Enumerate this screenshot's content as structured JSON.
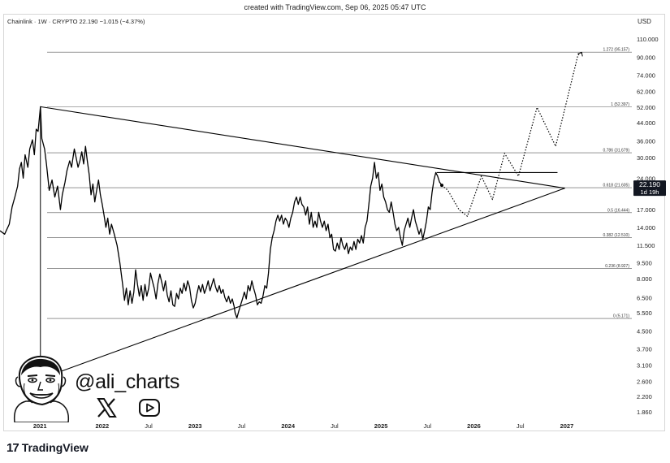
{
  "header": {
    "created_text": "created with TradingView.com, Sep 06, 2025 05:47 UTC"
  },
  "symbol": {
    "title": "Chainlink · 1W · CRYPTO",
    "price": "22.190",
    "change": "−1.015 (−4.37%)"
  },
  "currency": "USD",
  "price_label": {
    "price": "22.190",
    "countdown": "1d 19h"
  },
  "brand": {
    "logo_mark": "17",
    "logo_name": "TradingView"
  },
  "watermark": {
    "handle": "@ali_charts"
  },
  "icons": {
    "x": "x-logo-icon",
    "youtube": "youtube-play-icon",
    "avatar": "caricature-avatar",
    "tradingview": "tradingview-logo-icon"
  },
  "colors": {
    "line": "#000000",
    "grid": "#2a2a2a",
    "price_label_bg": "#131722",
    "fib_text": "#333333"
  },
  "chart_data": {
    "type": "line",
    "log_scale": true,
    "y_axis": {
      "labels": [
        "110.000",
        "90.000",
        "74.000",
        "62.000",
        "52.000",
        "44.000",
        "36.000",
        "30.000",
        "24.000",
        "17.000",
        "14.000",
        "11.500",
        "9.500",
        "8.000",
        "6.500",
        "5.500",
        "4.500",
        "3.700",
        "3.100",
        "2.600",
        "2.200",
        "1.860"
      ],
      "values": [
        110,
        90,
        74,
        62,
        52,
        44,
        36,
        30,
        24,
        17,
        14,
        11.5,
        9.5,
        8,
        6.5,
        5.5,
        4.5,
        3.7,
        3.1,
        2.6,
        2.2,
        1.86
      ],
      "ylim": [
        1.75,
        118
      ]
    },
    "x_axis": {
      "labels": [
        "2021",
        "2022",
        "Jul",
        "2023",
        "Jul",
        "2024",
        "Jul",
        "2025",
        "Jul",
        "2026",
        "Jul",
        "2027"
      ],
      "values": [
        2021.33,
        2022.0,
        2022.5,
        2023.0,
        2023.5,
        2024.0,
        2024.5,
        2025.0,
        2025.5,
        2026.0,
        2026.5,
        2027.0
      ],
      "xlim": [
        2020.9,
        2027.7
      ]
    },
    "fib_levels": [
      {
        "label": "1.272 (95.157)",
        "value": 95.157
      },
      {
        "label": "1 (52.397)",
        "value": 52.397
      },
      {
        "label": "0.786 (31.679)",
        "value": 31.679
      },
      {
        "label": "0.618 (21.605)",
        "value": 21.605
      },
      {
        "label": "0.5 (16.444)",
        "value": 16.444
      },
      {
        "label": "0.382 (12.510)",
        "value": 12.51
      },
      {
        "label": "0.236 (8.927)",
        "value": 8.927
      },
      {
        "label": "0 (5.171)",
        "value": 5.171
      }
    ],
    "series": [
      {
        "style": "solid",
        "points": [
          [
            2020.9,
            13.5
          ],
          [
            2020.95,
            13.0
          ],
          [
            2021.0,
            14.5
          ],
          [
            2021.03,
            17.5
          ],
          [
            2021.06,
            19.5
          ],
          [
            2021.09,
            22.0
          ],
          [
            2021.11,
            26.5
          ],
          [
            2021.13,
            28.5
          ],
          [
            2021.15,
            24.0
          ],
          [
            2021.17,
            31.0
          ],
          [
            2021.2,
            27.0
          ],
          [
            2021.22,
            33.0
          ],
          [
            2021.25,
            36.5
          ],
          [
            2021.27,
            31.0
          ],
          [
            2021.29,
            41.0
          ],
          [
            2021.31,
            40.0
          ],
          [
            2021.335,
            52.4
          ],
          [
            2021.35,
            37.0
          ],
          [
            2021.38,
            33.0
          ],
          [
            2021.4,
            28.0
          ],
          [
            2021.43,
            21.0
          ],
          [
            2021.46,
            23.5
          ],
          [
            2021.49,
            19.5
          ],
          [
            2021.52,
            22.0
          ],
          [
            2021.55,
            17.0
          ],
          [
            2021.57,
            20.0
          ],
          [
            2021.6,
            23.0
          ],
          [
            2021.62,
            26.0
          ],
          [
            2021.65,
            29.0
          ],
          [
            2021.67,
            27.0
          ],
          [
            2021.7,
            33.0
          ],
          [
            2021.72,
            30.0
          ],
          [
            2021.74,
            27.0
          ],
          [
            2021.76,
            29.0
          ],
          [
            2021.78,
            32.0
          ],
          [
            2021.8,
            28.0
          ],
          [
            2021.82,
            34.0
          ],
          [
            2021.84,
            29.0
          ],
          [
            2021.86,
            25.0
          ],
          [
            2021.88,
            20.0
          ],
          [
            2021.9,
            22.5
          ],
          [
            2021.92,
            18.5
          ],
          [
            2021.94,
            21.0
          ],
          [
            2021.96,
            23.5
          ],
          [
            2021.98,
            20.0
          ],
          [
            2022.0,
            18.0
          ],
          [
            2022.02,
            16.0
          ],
          [
            2022.04,
            14.0
          ],
          [
            2022.06,
            15.5
          ],
          [
            2022.08,
            13.0
          ],
          [
            2022.1,
            14.5
          ],
          [
            2022.13,
            13.0
          ],
          [
            2022.16,
            11.5
          ],
          [
            2022.19,
            9.5
          ],
          [
            2022.22,
            7.5
          ],
          [
            2022.24,
            6.3
          ],
          [
            2022.26,
            7.2
          ],
          [
            2022.28,
            6.0
          ],
          [
            2022.3,
            7.0
          ],
          [
            2022.32,
            6.1
          ],
          [
            2022.34,
            6.9
          ],
          [
            2022.36,
            8.8
          ],
          [
            2022.38,
            7.5
          ],
          [
            2022.4,
            6.6
          ],
          [
            2022.42,
            7.4
          ],
          [
            2022.44,
            6.3
          ],
          [
            2022.46,
            7.5
          ],
          [
            2022.48,
            6.6
          ],
          [
            2022.5,
            7.2
          ],
          [
            2022.52,
            8.5
          ],
          [
            2022.54,
            7.8
          ],
          [
            2022.56,
            7.2
          ],
          [
            2022.58,
            6.4
          ],
          [
            2022.6,
            7.6
          ],
          [
            2022.62,
            8.4
          ],
          [
            2022.64,
            7.7
          ],
          [
            2022.66,
            7.0
          ],
          [
            2022.68,
            7.8
          ],
          [
            2022.7,
            6.7
          ],
          [
            2022.72,
            6.2
          ],
          [
            2022.74,
            7.0
          ],
          [
            2022.76,
            6.0
          ],
          [
            2022.78,
            5.9
          ],
          [
            2022.8,
            6.8
          ],
          [
            2022.82,
            6.4
          ],
          [
            2022.84,
            7.2
          ],
          [
            2022.86,
            6.8
          ],
          [
            2022.88,
            7.6
          ],
          [
            2022.9,
            7.0
          ],
          [
            2022.92,
            7.8
          ],
          [
            2022.94,
            7.3
          ],
          [
            2022.96,
            6.3
          ],
          [
            2022.98,
            5.8
          ],
          [
            2023.0,
            6.1
          ],
          [
            2023.02,
            6.8
          ],
          [
            2023.04,
            7.4
          ],
          [
            2023.06,
            6.9
          ],
          [
            2023.08,
            7.5
          ],
          [
            2023.1,
            6.8
          ],
          [
            2023.12,
            7.2
          ],
          [
            2023.14,
            7.8
          ],
          [
            2023.16,
            7.0
          ],
          [
            2023.18,
            7.5
          ],
          [
            2023.2,
            8.0
          ],
          [
            2023.22,
            7.3
          ],
          [
            2023.24,
            6.9
          ],
          [
            2023.26,
            7.4
          ],
          [
            2023.28,
            6.8
          ],
          [
            2023.3,
            7.1
          ],
          [
            2023.32,
            6.5
          ],
          [
            2023.34,
            6.2
          ],
          [
            2023.36,
            6.6
          ],
          [
            2023.38,
            6.1
          ],
          [
            2023.4,
            6.4
          ],
          [
            2023.42,
            5.9
          ],
          [
            2023.43,
            5.5
          ],
          [
            2023.45,
            5.2
          ],
          [
            2023.47,
            5.6
          ],
          [
            2023.49,
            6.0
          ],
          [
            2023.51,
            6.4
          ],
          [
            2023.53,
            6.9
          ],
          [
            2023.55,
            6.4
          ],
          [
            2023.57,
            7.4
          ],
          [
            2023.59,
            7.0
          ],
          [
            2023.61,
            7.8
          ],
          [
            2023.63,
            7.2
          ],
          [
            2023.65,
            6.7
          ],
          [
            2023.67,
            6.0
          ],
          [
            2023.69,
            6.2
          ],
          [
            2023.71,
            6.1
          ],
          [
            2023.73,
            6.6
          ],
          [
            2023.75,
            7.4
          ],
          [
            2023.77,
            7.2
          ],
          [
            2023.79,
            8.5
          ],
          [
            2023.81,
            11.0
          ],
          [
            2023.83,
            12.5
          ],
          [
            2023.85,
            13.5
          ],
          [
            2023.87,
            15.0
          ],
          [
            2023.89,
            16.0
          ],
          [
            2023.91,
            15.0
          ],
          [
            2023.93,
            16.0
          ],
          [
            2023.95,
            14.5
          ],
          [
            2023.97,
            15.5
          ],
          [
            2023.99,
            15.0
          ],
          [
            2024.01,
            14.0
          ],
          [
            2024.03,
            15.5
          ],
          [
            2024.05,
            16.5
          ],
          [
            2024.07,
            18.5
          ],
          [
            2024.09,
            19.5
          ],
          [
            2024.11,
            18.0
          ],
          [
            2024.13,
            19.5
          ],
          [
            2024.15,
            18.0
          ],
          [
            2024.17,
            17.5
          ],
          [
            2024.19,
            16.0
          ],
          [
            2024.21,
            17.5
          ],
          [
            2024.23,
            14.5
          ],
          [
            2024.25,
            16.5
          ],
          [
            2024.27,
            14.0
          ],
          [
            2024.29,
            15.0
          ],
          [
            2024.31,
            14.0
          ],
          [
            2024.33,
            16.5
          ],
          [
            2024.35,
            15.0
          ],
          [
            2024.37,
            14.0
          ],
          [
            2024.39,
            15.0
          ],
          [
            2024.41,
            13.5
          ],
          [
            2024.43,
            14.5
          ],
          [
            2024.45,
            12.5
          ],
          [
            2024.47,
            13.0
          ],
          [
            2024.49,
            11.0
          ],
          [
            2024.51,
            10.8
          ],
          [
            2024.53,
            11.8
          ],
          [
            2024.55,
            11.0
          ],
          [
            2024.57,
            12.5
          ],
          [
            2024.59,
            11.5
          ],
          [
            2024.61,
            11.0
          ],
          [
            2024.63,
            11.8
          ],
          [
            2024.65,
            10.5
          ],
          [
            2024.67,
            11.3
          ],
          [
            2024.69,
            10.9
          ],
          [
            2024.71,
            12.0
          ],
          [
            2024.73,
            11.0
          ],
          [
            2024.75,
            12.3
          ],
          [
            2024.77,
            11.8
          ],
          [
            2024.79,
            12.8
          ],
          [
            2024.81,
            11.8
          ],
          [
            2024.83,
            14.0
          ],
          [
            2024.85,
            15.0
          ],
          [
            2024.87,
            18.0
          ],
          [
            2024.89,
            22.0
          ],
          [
            2024.91,
            24.0
          ],
          [
            2024.93,
            28.5
          ],
          [
            2024.95,
            24.0
          ],
          [
            2024.97,
            25.5
          ],
          [
            2024.99,
            21.0
          ],
          [
            2025.01,
            22.5
          ],
          [
            2025.03,
            19.5
          ],
          [
            2025.05,
            18.5
          ],
          [
            2025.07,
            17.0
          ],
          [
            2025.09,
            16.5
          ],
          [
            2025.11,
            18.5
          ],
          [
            2025.13,
            16.5
          ],
          [
            2025.15,
            14.5
          ],
          [
            2025.17,
            13.5
          ],
          [
            2025.19,
            14.0
          ],
          [
            2025.21,
            12.5
          ],
          [
            2025.23,
            11.5
          ],
          [
            2025.25,
            13.5
          ],
          [
            2025.27,
            14.5
          ],
          [
            2025.29,
            15.5
          ],
          [
            2025.31,
            14.0
          ],
          [
            2025.33,
            15.5
          ],
          [
            2025.35,
            17.0
          ],
          [
            2025.37,
            15.0
          ],
          [
            2025.39,
            14.0
          ],
          [
            2025.41,
            13.0
          ],
          [
            2025.43,
            13.8
          ],
          [
            2025.45,
            12.3
          ],
          [
            2025.47,
            13.5
          ],
          [
            2025.49,
            15.0
          ],
          [
            2025.51,
            17.5
          ],
          [
            2025.53,
            17.0
          ],
          [
            2025.55,
            20.5
          ],
          [
            2025.57,
            23.5
          ],
          [
            2025.59,
            25.5
          ],
          [
            2025.61,
            24.5
          ],
          [
            2025.63,
            23.0
          ],
          [
            2025.655,
            22.19
          ]
        ]
      },
      {
        "style": "dotted",
        "points": [
          [
            2025.655,
            22.19
          ],
          [
            2025.72,
            21.0
          ],
          [
            2025.84,
            17.0
          ],
          [
            2025.93,
            15.8
          ],
          [
            2026.08,
            24.5
          ],
          [
            2026.2,
            19.0
          ],
          [
            2026.33,
            31.5
          ],
          [
            2026.48,
            24.5
          ],
          [
            2026.68,
            52.0
          ],
          [
            2026.88,
            34.0
          ],
          [
            2027.12,
            92.0
          ],
          [
            2027.16,
            95.0
          ]
        ]
      }
    ],
    "trendlines": [
      {
        "from": [
          2021.335,
          52.4
        ],
        "to": [
          2026.98,
          21.5
        ]
      },
      {
        "from": [
          2021.1,
          2.45
        ],
        "to": [
          2026.98,
          21.5
        ]
      },
      {
        "from": [
          2025.6,
          25.5
        ],
        "to": [
          2026.9,
          25.5
        ]
      }
    ],
    "vertical_line": {
      "x": 2021.335,
      "from": 2.1,
      "to": 52.4
    },
    "grid": false,
    "legend": "none"
  }
}
